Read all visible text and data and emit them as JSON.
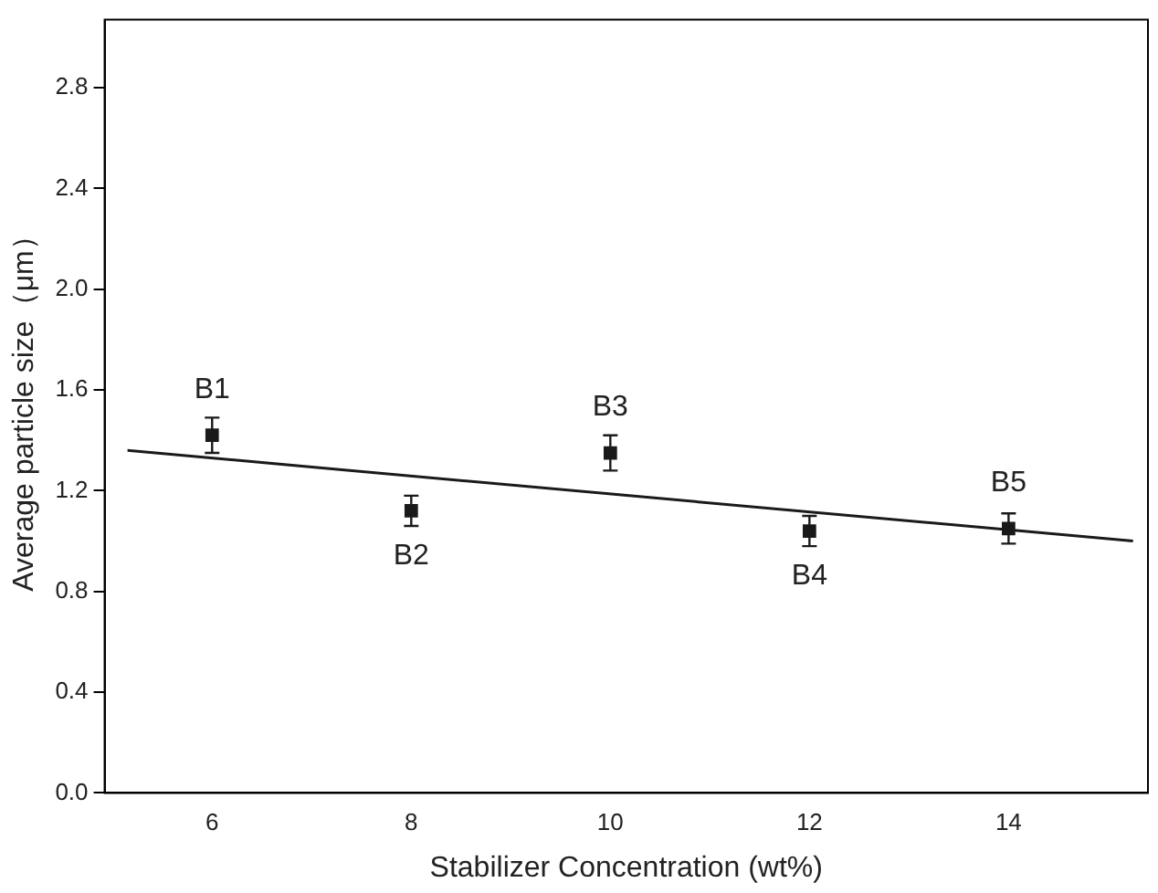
{
  "chart_data": {
    "type": "scatter",
    "xlabel": "Stabilizer Concentration (wt%)",
    "ylabel": "Average particle size（μm）",
    "x": [
      6,
      8,
      10,
      12,
      14
    ],
    "series": [
      {
        "color": "#1a1a1a",
        "values": [
          1.42,
          1.12,
          1.35,
          1.04,
          1.05
        ],
        "errors": [
          0.07,
          0.06,
          0.07,
          0.06,
          0.06
        ],
        "marker": "square"
      },
      {
        "type": "line",
        "color": "#1a1a1a",
        "x": [
          5.15,
          15.25
        ],
        "values": [
          1.36,
          1.0
        ],
        "marker": "none"
      }
    ],
    "xlim": [
      4.92,
      15.4
    ],
    "xticks": [
      6,
      8,
      10,
      12,
      14
    ],
    "ylim": [
      0,
      3.07
    ],
    "yticks": [
      {
        "value": 0,
        "label": "0.0"
      },
      0.4,
      0.8,
      1.2,
      1.6,
      {
        "value": 2,
        "label": "2.0"
      },
      2.4,
      2.8
    ],
    "annotations": [
      {
        "text": "B1",
        "x": 6,
        "y": 1.42
      },
      {
        "text": "B2",
        "x": 8,
        "y": 1.12
      },
      {
        "text": "B3",
        "x": 10,
        "y": 1.35
      },
      {
        "text": "B4",
        "x": 12,
        "y": 1.04
      },
      {
        "text": "B5",
        "x": 14,
        "y": 1.05
      }
    ],
    "grid": false,
    "legend": false
  }
}
